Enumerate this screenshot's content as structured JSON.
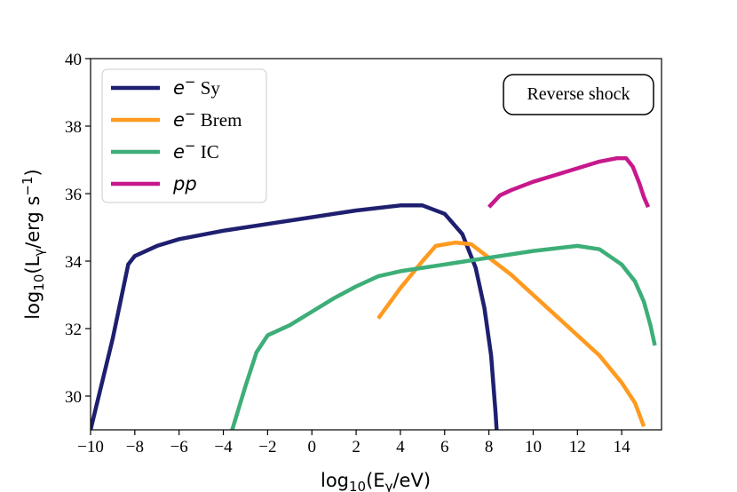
{
  "chart_data": {
    "type": "line",
    "xlabel": "log10(Eγ/eV)",
    "ylabel": "log10(Lγ/erg s−1)",
    "xlim": [
      -10,
      15.8
    ],
    "ylim": [
      29,
      40
    ],
    "xticks": [
      -10,
      -8,
      -6,
      -4,
      -2,
      0,
      2,
      4,
      6,
      8,
      10,
      12,
      14
    ],
    "xtick_labels": [
      "−10",
      "−8",
      "−6",
      "−4",
      "−2",
      "0",
      "2",
      "4",
      "6",
      "8",
      "10",
      "12",
      "14"
    ],
    "yticks": [
      30,
      32,
      34,
      36,
      38,
      40
    ],
    "ytick_labels": [
      "30",
      "32",
      "34",
      "36",
      "38",
      "40"
    ],
    "annotation": "Reverse shock",
    "legend_position": "upper-left",
    "series": [
      {
        "name": "e− Sy",
        "legend_math": "e",
        "legend_sup": "−",
        "legend_text": " Sy",
        "color": "#1f1f70",
        "x": [
          -10.0,
          -9.0,
          -8.3,
          -8.0,
          -7.0,
          -6.0,
          -4.0,
          -2.0,
          0.0,
          2.0,
          4.0,
          5.0,
          6.0,
          6.8,
          7.4,
          7.8,
          8.1,
          8.3,
          8.35
        ],
        "y": [
          29.0,
          31.7,
          33.9,
          34.15,
          34.45,
          34.65,
          34.9,
          35.1,
          35.3,
          35.5,
          35.65,
          35.65,
          35.4,
          34.8,
          33.8,
          32.6,
          31.2,
          29.5,
          29.0
        ]
      },
      {
        "name": "e− Brem",
        "legend_math": "e",
        "legend_sup": "−",
        "legend_text": " Brem",
        "color": "#ff9a1f",
        "x": [
          3.0,
          4.0,
          5.0,
          5.6,
          6.5,
          7.2,
          8.0,
          9.0,
          10.0,
          11.0,
          12.0,
          13.0,
          14.0,
          14.6,
          15.0
        ],
        "y": [
          32.3,
          33.2,
          34.0,
          34.45,
          34.55,
          34.5,
          34.1,
          33.6,
          33.0,
          32.4,
          31.8,
          31.2,
          30.4,
          29.8,
          29.1
        ]
      },
      {
        "name": "e− IC",
        "legend_math": "e",
        "legend_sup": "−",
        "legend_text": " IC",
        "color": "#3dae78",
        "x": [
          -3.6,
          -3.0,
          -2.5,
          -2.0,
          -1.0,
          0.0,
          1.0,
          2.0,
          3.0,
          4.0,
          6.0,
          8.0,
          10.0,
          12.0,
          13.0,
          14.0,
          14.6,
          15.0,
          15.3,
          15.5
        ],
        "y": [
          29.0,
          30.3,
          31.3,
          31.8,
          32.1,
          32.5,
          32.9,
          33.25,
          33.55,
          33.7,
          33.9,
          34.1,
          34.3,
          34.45,
          34.35,
          33.9,
          33.4,
          32.8,
          32.1,
          31.5
        ]
      },
      {
        "name": "pp",
        "legend_math": "pp",
        "legend_sup": "",
        "legend_text": "",
        "color": "#c7198c",
        "x": [
          8.0,
          8.5,
          9.0,
          10.0,
          11.0,
          12.0,
          13.0,
          13.8,
          14.2,
          14.5,
          14.8,
          15.0,
          15.2
        ],
        "y": [
          35.6,
          35.95,
          36.1,
          36.35,
          36.55,
          36.75,
          36.95,
          37.05,
          37.05,
          36.8,
          36.3,
          35.9,
          35.6
        ]
      }
    ]
  }
}
